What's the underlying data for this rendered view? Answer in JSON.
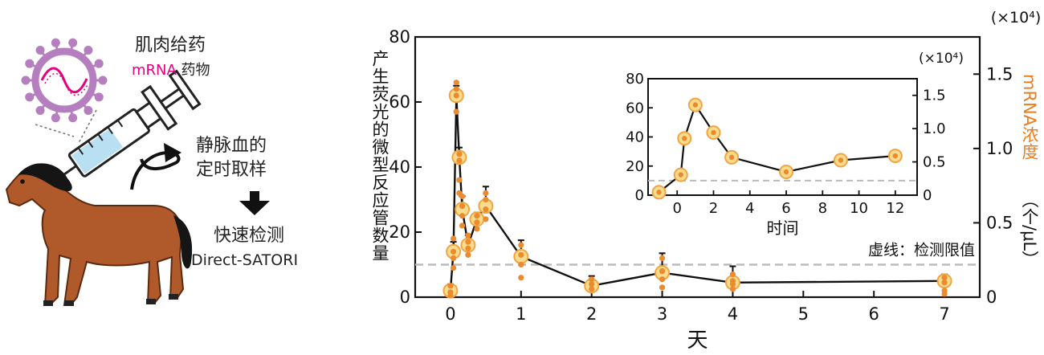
{
  "illustration": {
    "injection_label": "肌肉给药",
    "drug_label_mrna": "mRNA",
    "drug_label_suffix": " 药物",
    "sampling_line1": "静脉血的",
    "sampling_line2": "定时取样",
    "detection_label": "快速检测",
    "method_label": "Direct-SATORI"
  },
  "colors": {
    "marker_fill": "#f7dc8e",
    "marker_stroke": "#f0a545",
    "replicate_dot": "#ec8a2e",
    "right_axis_label": "#ec7d1c",
    "mrna_text": "#e4007f",
    "lnp": "#b57fbf",
    "horse": "#b05a2c"
  },
  "chart_data": [
    {
      "type": "line",
      "x": [
        0,
        0.0417,
        0.0833,
        0.125,
        0.1667,
        0.25,
        0.375,
        0.5,
        1,
        2,
        3,
        4,
        7
      ],
      "series": [
        {
          "values": [
            2,
            14,
            62,
            43,
            27,
            16,
            24,
            28,
            12.5,
            3.5,
            7.5,
            4.5,
            5
          ]
        }
      ],
      "replicates": [
        [
          0.5,
          1.5,
          3.5
        ],
        [
          9,
          12,
          14,
          18
        ],
        [
          57,
          62,
          64,
          66
        ],
        [
          32,
          36,
          42,
          44
        ],
        [
          22,
          25,
          28,
          31
        ],
        [
          13,
          15,
          17,
          19
        ],
        [
          21,
          23,
          25
        ],
        [
          24,
          27,
          30,
          32
        ],
        [
          6,
          10,
          13,
          16
        ],
        [
          2.5,
          4,
          5.5
        ],
        [
          3,
          5.5,
          8,
          12
        ],
        [
          2.5,
          4,
          5,
          7
        ],
        [
          1,
          2,
          4.5,
          6
        ]
      ],
      "error_upper": [
        2,
        3,
        3,
        3,
        4,
        3,
        2,
        6,
        5,
        3,
        6,
        5,
        2
      ],
      "threshold": 10,
      "threshold_label": "虚线：检测限值",
      "xlabel": "天",
      "ylabel": "产生荧光的微型反应管数量",
      "y2label_primary": "mRNA浓度",
      "y2label_unit": "（个/μL）",
      "y2_multiplier": "(×10⁴)",
      "xlim": [
        -0.5,
        7.5
      ],
      "ylim": [
        0,
        80
      ],
      "y2lim": [
        0,
        1.75
      ],
      "xticks": [
        0,
        1,
        2,
        3,
        4,
        5,
        6,
        7
      ],
      "yticks": [
        0,
        20,
        40,
        60,
        80
      ],
      "y2ticks": [
        "0",
        "0.5",
        "1.0",
        "1.5"
      ],
      "grid": false
    },
    {
      "type": "line",
      "x": [
        -1,
        0.2,
        0.4,
        1,
        2,
        3,
        6,
        9,
        12
      ],
      "series": [
        {
          "values": [
            2,
            14,
            39,
            62,
            43,
            26,
            16,
            24,
            27
          ]
        }
      ],
      "xlabel": "时间",
      "y2_multiplier": "(×10⁴)",
      "xlim": [
        -1.6,
        13.2
      ],
      "ylim": [
        0,
        80
      ],
      "xticks": [
        0,
        2,
        4,
        6,
        8,
        10,
        12
      ],
      "yticks": [
        0,
        20,
        40,
        60,
        80
      ],
      "y2ticks": [
        "0",
        "0.5",
        "1.0",
        "1.5"
      ],
      "threshold": 10,
      "grid": false
    }
  ]
}
